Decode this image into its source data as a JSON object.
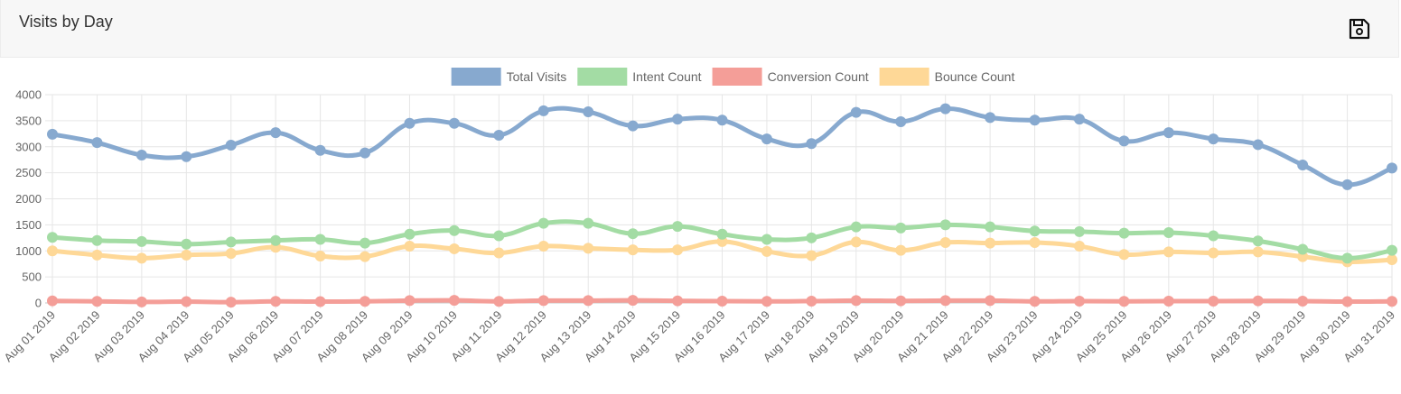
{
  "card": {
    "title": "Visits by Day",
    "save_icon": "floppy-disk-icon"
  },
  "chart_data": {
    "type": "line",
    "categories": [
      "Aug 01 2019",
      "Aug 02 2019",
      "Aug 03 2019",
      "Aug 04 2019",
      "Aug 05 2019",
      "Aug 06 2019",
      "Aug 07 2019",
      "Aug 08 2019",
      "Aug 09 2019",
      "Aug 10 2019",
      "Aug 11 2019",
      "Aug 12 2019",
      "Aug 13 2019",
      "Aug 14 2019",
      "Aug 15 2019",
      "Aug 16 2019",
      "Aug 17 2019",
      "Aug 18 2019",
      "Aug 19 2019",
      "Aug 20 2019",
      "Aug 21 2019",
      "Aug 22 2019",
      "Aug 23 2019",
      "Aug 24 2019",
      "Aug 25 2019",
      "Aug 26 2019",
      "Aug 27 2019",
      "Aug 28 2019",
      "Aug 29 2019",
      "Aug 30 2019",
      "Aug 31 2019"
    ],
    "yticks": [
      0,
      500,
      1000,
      1500,
      2000,
      2500,
      3000,
      3500,
      4000
    ],
    "ylim": [
      0,
      4000
    ],
    "grid": true,
    "legend_position": "top-center",
    "series": [
      {
        "name": "Total Visits",
        "color": "#87a9cf",
        "values": [
          3240,
          3080,
          2840,
          2810,
          3030,
          3270,
          2930,
          2880,
          3450,
          3450,
          3220,
          3690,
          3670,
          3400,
          3530,
          3510,
          3150,
          3060,
          3660,
          3480,
          3730,
          3560,
          3510,
          3530,
          3110,
          3270,
          3150,
          3040,
          2650,
          2270,
          2590
        ]
      },
      {
        "name": "Intent Count",
        "color": "#a3dca4",
        "values": [
          1260,
          1200,
          1180,
          1130,
          1170,
          1200,
          1220,
          1150,
          1320,
          1390,
          1290,
          1530,
          1530,
          1330,
          1470,
          1320,
          1220,
          1250,
          1460,
          1440,
          1500,
          1460,
          1380,
          1370,
          1340,
          1350,
          1290,
          1190,
          1030,
          860,
          1010
        ]
      },
      {
        "name": "Conversion Count",
        "color": "#f49e98",
        "values": [
          40,
          30,
          20,
          25,
          15,
          30,
          25,
          30,
          45,
          50,
          30,
          45,
          45,
          50,
          40,
          35,
          30,
          35,
          45,
          40,
          45,
          45,
          30,
          35,
          30,
          35,
          35,
          40,
          35,
          25,
          30
        ]
      },
      {
        "name": "Bounce Count",
        "color": "#fed897",
        "values": [
          1000,
          920,
          860,
          920,
          950,
          1070,
          900,
          890,
          1090,
          1040,
          960,
          1090,
          1050,
          1020,
          1020,
          1180,
          990,
          910,
          1170,
          1010,
          1160,
          1150,
          1160,
          1090,
          930,
          980,
          960,
          980,
          890,
          790,
          830
        ]
      }
    ]
  }
}
